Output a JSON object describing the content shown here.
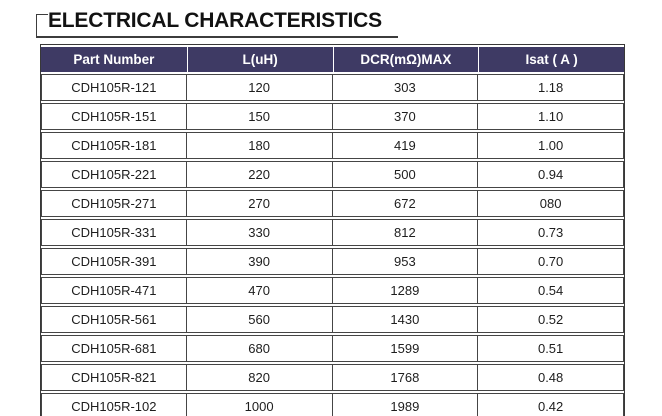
{
  "title": {
    "text": "ELECTRICAL CHARACTERISTICS"
  },
  "colors": {
    "header_bg": "#3e3a64",
    "header_text": "#ffffff",
    "border": "#454545",
    "title_color": "#121212"
  },
  "table": {
    "columns": [
      "Part Number",
      "L(uH)",
      "DCR(mΩ)MAX",
      "Isat ( A )"
    ],
    "rows": [
      [
        "CDH105R-121",
        "120",
        "303",
        "1.18"
      ],
      [
        "CDH105R-151",
        "150",
        "370",
        "1.10"
      ],
      [
        "CDH105R-181",
        "180",
        "419",
        "1.00"
      ],
      [
        "CDH105R-221",
        "220",
        "500",
        "0.94"
      ],
      [
        "CDH105R-271",
        "270",
        "672",
        "080"
      ],
      [
        "CDH105R-331",
        "330",
        "812",
        "0.73"
      ],
      [
        "CDH105R-391",
        "390",
        "953",
        "0.70"
      ],
      [
        "CDH105R-471",
        "470",
        "1289",
        "0.54"
      ],
      [
        "CDH105R-561",
        "560",
        "1430",
        "0.52"
      ],
      [
        "CDH105R-681",
        "680",
        "1599",
        "0.51"
      ],
      [
        "CDH105R-821",
        "820",
        "1768",
        "0.48"
      ],
      [
        "CDH105R-102",
        "1000",
        "1989",
        "0.42"
      ]
    ]
  }
}
